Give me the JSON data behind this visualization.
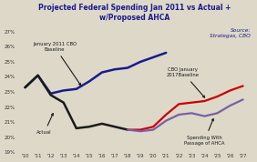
{
  "title": "Projected Federal Spending Jan 2011 vs Actual +\nw/Proposed AHCA",
  "source_text": "Source:\nStrategas, CBO",
  "years": [
    10,
    11,
    12,
    13,
    14,
    15,
    16,
    17,
    18,
    19,
    20,
    21,
    22,
    23,
    24,
    25,
    26,
    27
  ],
  "cbo2011": [
    23.3,
    24.1,
    22.9,
    23.1,
    23.2,
    23.7,
    24.3,
    24.5,
    24.6,
    25.0,
    25.3,
    25.6,
    null,
    null,
    null,
    null,
    null,
    null
  ],
  "actual": [
    23.3,
    24.1,
    22.8,
    22.3,
    20.6,
    20.7,
    20.9,
    20.7,
    20.5,
    null,
    null,
    null,
    null,
    null,
    null,
    null,
    null,
    null
  ],
  "cbo2017": [
    null,
    null,
    null,
    null,
    null,
    null,
    null,
    null,
    20.5,
    20.5,
    20.7,
    21.5,
    22.2,
    22.3,
    22.4,
    22.7,
    23.1,
    23.4
  ],
  "ahca": [
    null,
    null,
    null,
    null,
    null,
    null,
    null,
    null,
    20.5,
    20.4,
    20.5,
    21.1,
    21.5,
    21.6,
    21.4,
    21.6,
    22.1,
    22.5
  ],
  "cbo2011_color": "#1a1a8c",
  "actual_color": "#1a1a1a",
  "cbo2017_color": "#cc0000",
  "ahca_color": "#7b5ea7",
  "bg_color": "#ddd8c8",
  "ylim": [
    19.0,
    27.5
  ],
  "yticks": [
    19,
    20,
    21,
    22,
    23,
    24,
    25,
    26,
    27
  ],
  "xtick_labels": [
    "'10",
    "'11",
    "'12",
    "'13",
    "'14",
    "'15",
    "'16",
    "'17",
    "'18",
    "'19",
    "'20",
    "'21",
    "'22",
    "'23",
    "'24",
    "'25",
    "'26",
    "'27"
  ]
}
